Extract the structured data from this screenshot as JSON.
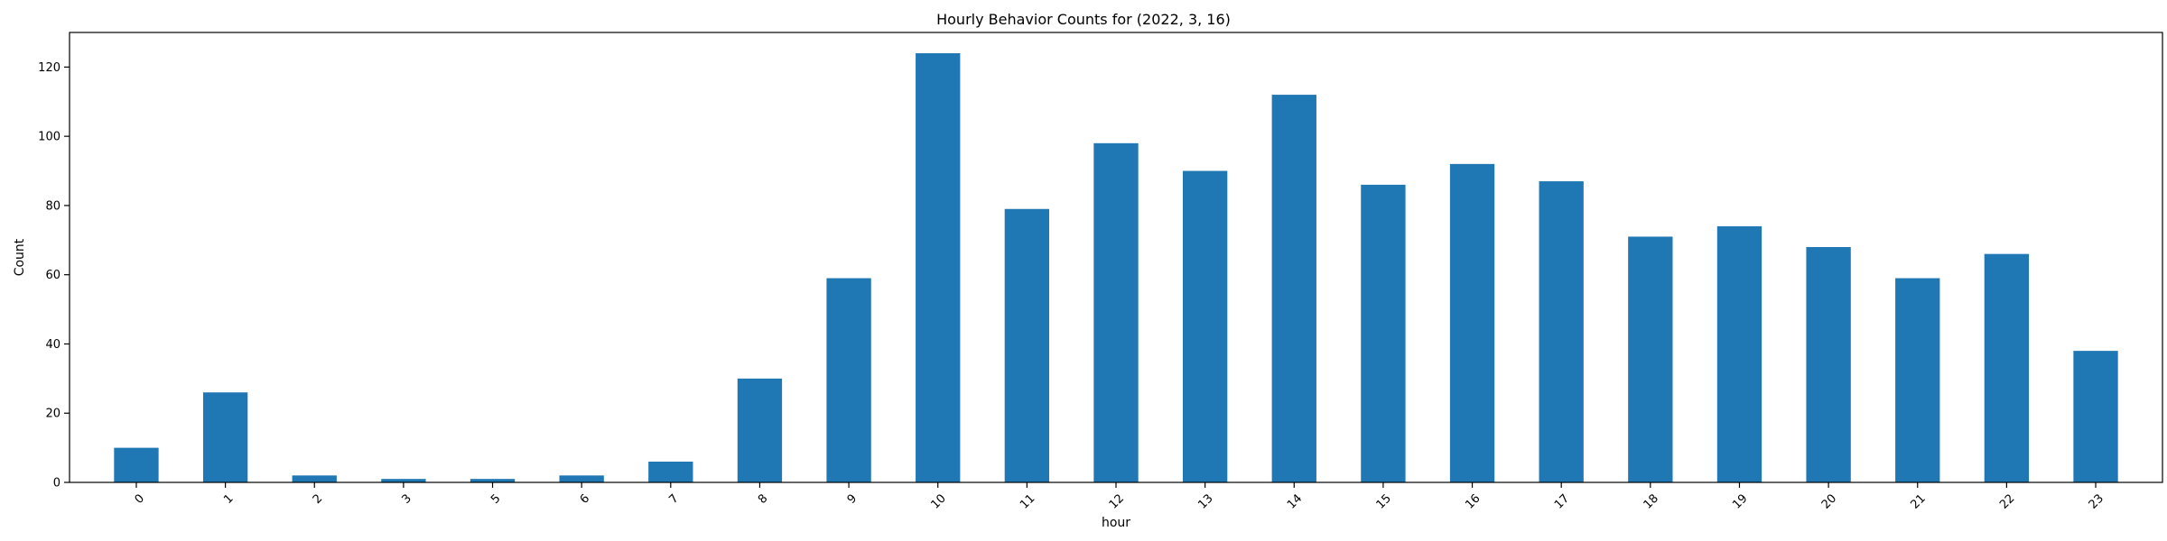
{
  "chart_data": {
    "type": "bar",
    "title": "Hourly Behavior Counts for (2022, 3, 16)",
    "xlabel": "hour",
    "ylabel": "Count",
    "categories": [
      "0",
      "1",
      "2",
      "3",
      "5",
      "6",
      "7",
      "8",
      "9",
      "10",
      "11",
      "12",
      "13",
      "14",
      "15",
      "16",
      "17",
      "18",
      "19",
      "20",
      "21",
      "22",
      "23"
    ],
    "values": [
      10,
      26,
      2,
      1,
      1,
      2,
      6,
      30,
      59,
      124,
      79,
      98,
      90,
      112,
      86,
      92,
      87,
      71,
      74,
      68,
      59,
      66,
      38
    ],
    "ylim": [
      0,
      130
    ],
    "yticks": [
      0,
      20,
      40,
      60,
      80,
      100,
      120
    ],
    "bar_color": "#1f77b4",
    "grid": false,
    "legend": "none"
  }
}
